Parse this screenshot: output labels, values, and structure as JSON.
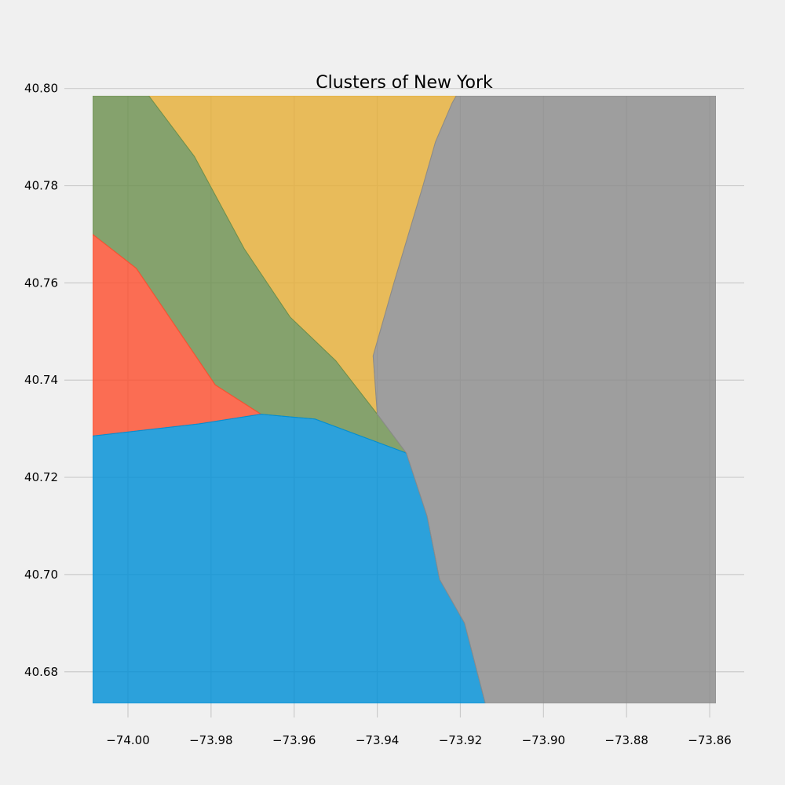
{
  "chart_data": {
    "type": "scatter",
    "title": "Clusters of New York",
    "xlabel": "",
    "ylabel": "",
    "xlim": [
      -74.0085,
      -73.8585
    ],
    "ylim": [
      40.6735,
      40.7985
    ],
    "xticks": [
      -74.0,
      -73.98,
      -73.96,
      -73.94,
      -73.92,
      -73.9,
      -73.88,
      -73.86
    ],
    "xtick_labels": [
      "−74.00",
      "−73.98",
      "−73.96",
      "−73.94",
      "−73.92",
      "−73.90",
      "−73.88",
      "−73.86"
    ],
    "yticks": [
      40.68,
      40.7,
      40.72,
      40.74,
      40.76,
      40.78,
      40.8
    ],
    "ytick_labels": [
      "40.68",
      "40.70",
      "40.72",
      "40.74",
      "40.76",
      "40.78",
      "40.80"
    ],
    "grid": true,
    "background_color": "#f0f0f0",
    "clusters": [
      {
        "color": "#e5ae38",
        "region": [
          [
            -73.995,
            40.7985
          ],
          [
            -73.921,
            40.7985
          ],
          [
            -73.922,
            40.797
          ],
          [
            -73.926,
            40.789
          ],
          [
            -73.929,
            40.78
          ],
          [
            -73.936,
            40.76
          ],
          [
            -73.941,
            40.745
          ],
          [
            -73.94,
            40.733
          ],
          [
            -73.95,
            40.744
          ],
          [
            -73.961,
            40.753
          ],
          [
            -73.972,
            40.767
          ],
          [
            -73.984,
            40.786
          ]
        ]
      },
      {
        "color": "#6d904f",
        "region": [
          [
            -74.0085,
            40.7985
          ],
          [
            -73.995,
            40.7985
          ],
          [
            -73.984,
            40.786
          ],
          [
            -73.972,
            40.767
          ],
          [
            -73.961,
            40.753
          ],
          [
            -73.95,
            40.744
          ],
          [
            -73.94,
            40.733
          ],
          [
            -73.933,
            40.725
          ],
          [
            -73.955,
            40.732
          ],
          [
            -73.968,
            40.733
          ],
          [
            -73.979,
            40.739
          ],
          [
            -73.998,
            40.763
          ],
          [
            -74.0085,
            40.77
          ]
        ]
      },
      {
        "color": "#fc4f30",
        "region": [
          [
            -74.0085,
            40.77
          ],
          [
            -73.998,
            40.763
          ],
          [
            -73.979,
            40.739
          ],
          [
            -73.968,
            40.733
          ],
          [
            -73.983,
            40.731
          ],
          [
            -74.0085,
            40.7285
          ]
        ]
      },
      {
        "color": "#008fd5",
        "region": [
          [
            -74.0085,
            40.7285
          ],
          [
            -73.983,
            40.731
          ],
          [
            -73.968,
            40.733
          ],
          [
            -73.955,
            40.732
          ],
          [
            -73.933,
            40.725
          ],
          [
            -73.928,
            40.712
          ],
          [
            -73.925,
            40.699
          ],
          [
            -73.919,
            40.69
          ],
          [
            -73.914,
            40.6735
          ],
          [
            -74.0085,
            40.6735
          ]
        ]
      },
      {
        "color": "#8b8b8b",
        "region": [
          [
            -73.921,
            40.7985
          ],
          [
            -73.8585,
            40.7985
          ],
          [
            -73.8585,
            40.6735
          ],
          [
            -73.914,
            40.6735
          ],
          [
            -73.919,
            40.69
          ],
          [
            -73.925,
            40.699
          ],
          [
            -73.928,
            40.712
          ],
          [
            -73.933,
            40.725
          ],
          [
            -73.94,
            40.733
          ],
          [
            -73.941,
            40.745
          ],
          [
            -73.936,
            40.76
          ],
          [
            -73.929,
            40.78
          ],
          [
            -73.926,
            40.789
          ],
          [
            -73.922,
            40.797
          ]
        ]
      }
    ]
  }
}
